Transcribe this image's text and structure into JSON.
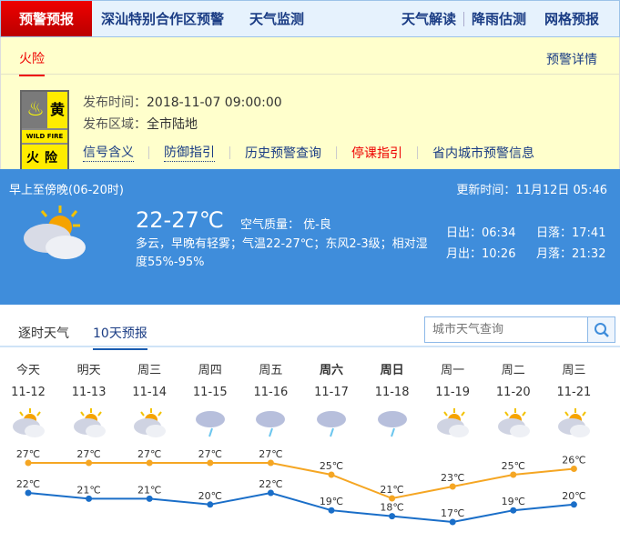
{
  "nav": {
    "active": "预警预报",
    "items": [
      "深汕特别合作区预警",
      "天气监测"
    ],
    "right": [
      "天气解读",
      "降雨估测",
      "网格预报"
    ]
  },
  "warning": {
    "tab": "火险",
    "detail_link": "预警详情",
    "badge": {
      "level": "黄",
      "en": "WILD FIRE",
      "cn": "火险"
    },
    "time_label": "发布时间：",
    "time": "2018-11-07 09:00:00",
    "area_label": "发布区域：",
    "area": "全市陆地",
    "links": [
      "信号含义",
      "防御指引",
      "历史预警查询",
      "停课指引",
      "省内城市预警信息"
    ]
  },
  "today": {
    "period": "早上至傍晚(06-20时)",
    "updated": "更新时间：11月12日 05:46",
    "icon": "partly-cloudy-icon",
    "temp": "22-27℃",
    "aq": "空气质量： 优-良",
    "desc": "多云，早晚有轻雾；气温22-27℃；东风2-3级；相对湿度55%-95%",
    "sunrise": "日出：06:34",
    "sunset": "日落：17:41",
    "moonrise": "月出：10:26",
    "moonset": "月落：21:32"
  },
  "tabs": [
    "逐时天气",
    "10天预报"
  ],
  "search": {
    "placeholder": "城市天气查询"
  },
  "colors": {
    "high": "#f5a623",
    "low": "#1a6ec8"
  },
  "chart_data": {
    "type": "line",
    "categories": [
      "今天",
      "明天",
      "周三",
      "周四",
      "周五",
      "周六",
      "周日",
      "周一",
      "周二",
      "周三"
    ],
    "dates": [
      "11-12",
      "11-13",
      "11-14",
      "11-15",
      "11-16",
      "11-17",
      "11-18",
      "11-19",
      "11-20",
      "11-21"
    ],
    "icons": [
      "partly-cloudy",
      "partly-cloudy",
      "partly-cloudy",
      "light-rain",
      "light-rain",
      "light-rain",
      "light-rain",
      "partly-cloudy",
      "partly-cloudy",
      "partly-cloudy"
    ],
    "bold": [
      false,
      false,
      false,
      false,
      false,
      true,
      true,
      false,
      false,
      false
    ],
    "series": [
      {
        "values": [
          27,
          27,
          27,
          27,
          27,
          25,
          21,
          23,
          25,
          26
        ]
      },
      {
        "values": [
          22,
          21,
          21,
          20,
          22,
          19,
          18,
          17,
          19,
          20
        ]
      }
    ],
    "unit": "℃"
  }
}
